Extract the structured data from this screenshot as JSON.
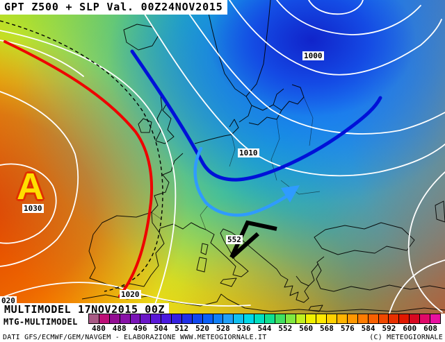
{
  "header": {
    "title": "GPT Z500 + SLP Val. 00Z24NOV2015"
  },
  "map": {
    "high_marker": {
      "letter": "A",
      "pressure": "1030"
    },
    "slp_labels": {
      "n1000": "1000",
      "n1010": "1010",
      "n1020": "1020",
      "n1020_clipped": "020"
    },
    "z500_label": "552",
    "annotation_colors": {
      "trough_line_red": "#ee0000",
      "jet_line_dark_blue": "#0011d8",
      "flow_arrow_light_blue": "#2f9bff",
      "cold_arrow_black": "#000000"
    }
  },
  "footer": {
    "model_label": "MULTIMODEL 17NOV2015 00Z",
    "model_sub_label": "MTG-MULTIMODEL",
    "credit_left": "DATI GFS/ECMWF/GEM/NAVGEM - ELABORAZIONE WWW.METEOGIORNALE.IT",
    "credit_right": "(C) METEOGIORNALE"
  },
  "colorbar": {
    "tick_labels": [
      "480",
      "488",
      "496",
      "504",
      "512",
      "520",
      "528",
      "536",
      "544",
      "552",
      "560",
      "568",
      "576",
      "584",
      "592",
      "600",
      "608"
    ],
    "cell_colors": [
      "#a85a85",
      "#bd0f77",
      "#930d93",
      "#8812a8",
      "#7a14b8",
      "#6a16c8",
      "#5a18d8",
      "#4a1ae0",
      "#3420e0",
      "#2030e8",
      "#1048f0",
      "#0a60f8",
      "#1080f8",
      "#20a0f8",
      "#10c0f0",
      "#00d8e8",
      "#00e0c0",
      "#10e090",
      "#40e060",
      "#80e840",
      "#c0f020",
      "#f0f000",
      "#ffe800",
      "#ffd000",
      "#ffb400",
      "#ff9800",
      "#ff7c00",
      "#f86000",
      "#f04800",
      "#e83000",
      "#e01800",
      "#d80820",
      "#e00868",
      "#e810a0"
    ]
  }
}
